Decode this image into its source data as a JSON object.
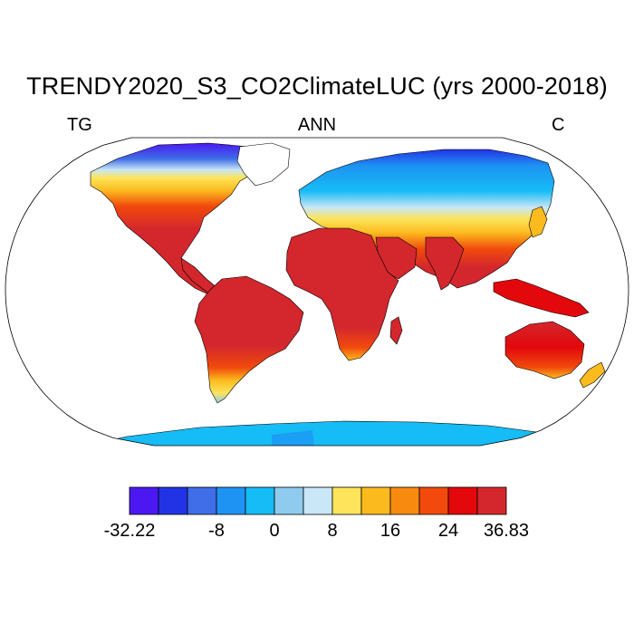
{
  "title": "TRENDY2020_S3_CO2ClimateLUC (yrs 2000-2018)",
  "left_label": "TG",
  "center_label": "ANN",
  "right_label": "C",
  "colorbar": {
    "min": -32.22,
    "max": 36.83,
    "tick_labels": [
      "-32.22",
      "-8",
      "0",
      "8",
      "16",
      "24",
      "36.83"
    ],
    "bin_edges": [
      -32.22,
      -24,
      -16,
      -8,
      -4,
      0,
      4,
      8,
      12,
      16,
      20,
      24,
      28,
      36.83
    ],
    "colors": [
      "#4b18f2",
      "#2233e6",
      "#3f6ee8",
      "#1e93f3",
      "#16bcf5",
      "#8fcbee",
      "#c9e7f7",
      "#fde45b",
      "#fbbb1f",
      "#f88a10",
      "#f14a0c",
      "#e2080c",
      "#d3272d"
    ]
  },
  "map_colors": {
    "antarctica": "#16bcf5",
    "arctic": "#4b18f2",
    "boreal": "#1e93f3",
    "cool": "#8fcbee",
    "temperate": "#fbbb1f",
    "warm": "#f14a0c",
    "tropical": "#d3272d"
  }
}
